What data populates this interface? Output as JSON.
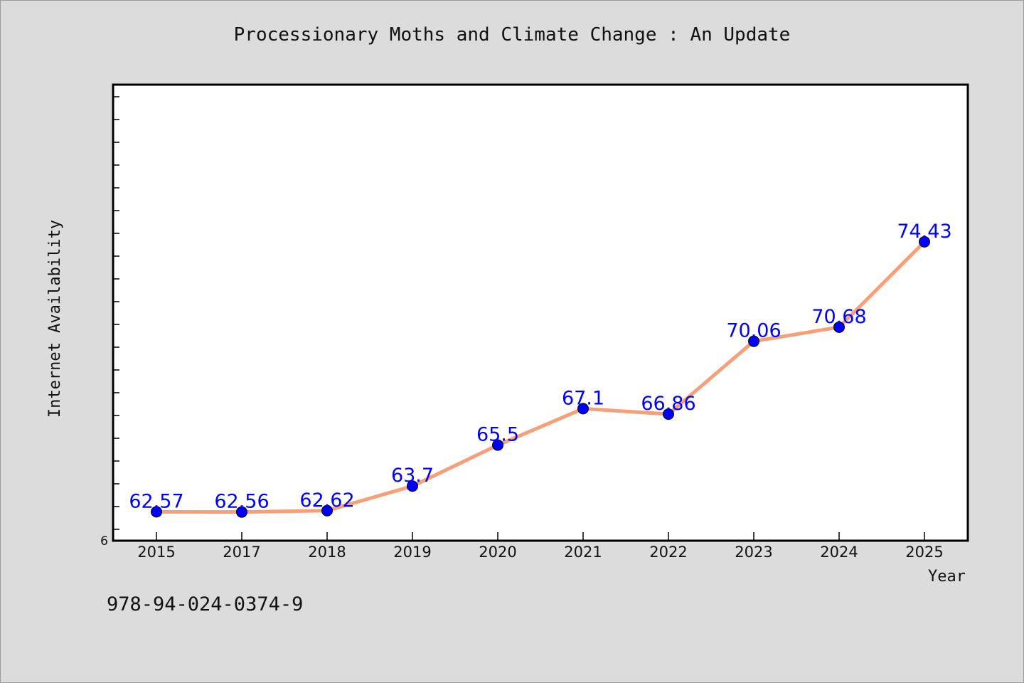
{
  "chart_data": {
    "type": "line",
    "title": "Processionary Moths and Climate Change : An Update",
    "xlabel": "Year",
    "ylabel": "Internet Availability",
    "categories": [
      "2015",
      "2017",
      "2018",
      "2019",
      "2020",
      "2021",
      "2022",
      "2023",
      "2024",
      "2025"
    ],
    "series": [
      {
        "values": [
          62.57,
          62.56,
          62.62,
          63.7,
          65.5,
          67.1,
          66.86,
          70.06,
          70.68,
          74.43
        ],
        "labels": [
          "62.57",
          "62.56",
          "62.62",
          "63.7",
          "65.5",
          "67.1",
          "66.86",
          "70.06",
          "70.68",
          "74.43"
        ]
      }
    ],
    "ylim": [
      61.3,
      81.3
    ],
    "y_tick_label": "6",
    "grid": false,
    "line_color": "#f4a07a",
    "marker_color": "#0000ff",
    "label_color": "#0000ff"
  },
  "footer": {
    "isbn": "978-94-024-0374-9"
  }
}
